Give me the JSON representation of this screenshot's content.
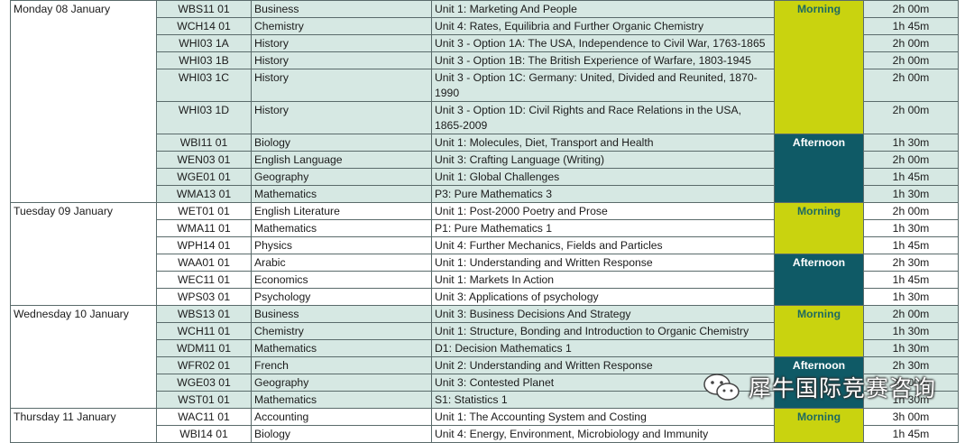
{
  "days": [
    {
      "date": "Monday 08 January",
      "rows": [
        {
          "code": "WBS11 01",
          "subject": "Business",
          "unit": "Unit 1: Marketing And People",
          "duration": "2h 00m"
        },
        {
          "code": "WCH14 01",
          "subject": "Chemistry",
          "unit": "Unit 4: Rates, Equilibria and Further Organic Chemistry",
          "duration": "1h 45m"
        },
        {
          "code": "WHI03 1A",
          "subject": "History",
          "unit": "Unit 3 - Option 1A: The USA, Independence to Civil War, 1763-1865",
          "duration": "2h 00m"
        },
        {
          "code": "WHI03 1B",
          "subject": "History",
          "unit": "Unit 3 - Option 1B: The British Experience of Warfare, 1803-1945",
          "duration": "2h 00m"
        },
        {
          "code": "WHI03 1C",
          "subject": "History",
          "unit": "Unit 3 - Option 1C: Germany: United, Divided and Reunited, 1870-1990",
          "duration": "2h 00m"
        },
        {
          "code": "WHI03 1D",
          "subject": "History",
          "unit": "Unit 3 - Option 1D: Civil Rights and Race Relations in the USA, 1865-2009",
          "duration": "2h 00m"
        },
        {
          "code": "WBI11 01",
          "subject": "Biology",
          "unit": "Unit 1: Molecules, Diet, Transport and Health",
          "duration": "1h 30m"
        },
        {
          "code": "WEN03 01",
          "subject": "English Language",
          "unit": "Unit 3: Crafting Language (Writing)",
          "duration": "2h 00m"
        },
        {
          "code": "WGE01 01",
          "subject": "Geography",
          "unit": "Unit 1: Global Challenges",
          "duration": "1h 45m"
        },
        {
          "code": "WMA13 01",
          "subject": "Mathematics",
          "unit": "P3: Pure Mathematics 3",
          "duration": "1h 30m"
        }
      ]
    },
    {
      "date": "Tuesday 09 January",
      "rows": [
        {
          "code": "WET01 01",
          "subject": "English Literature",
          "unit": "Unit 1: Post-2000 Poetry and Prose",
          "duration": "2h 00m"
        },
        {
          "code": "WMA11 01",
          "subject": "Mathematics",
          "unit": "P1: Pure Mathematics 1",
          "duration": "1h 30m"
        },
        {
          "code": "WPH14 01",
          "subject": "Physics",
          "unit": "Unit 4: Further Mechanics, Fields and Particles",
          "duration": "1h 45m"
        },
        {
          "code": "WAA01 01",
          "subject": "Arabic",
          "unit": "Unit 1: Understanding and Written Response",
          "duration": "2h 30m"
        },
        {
          "code": "WEC11 01",
          "subject": "Economics",
          "unit": "Unit 1: Markets In Action",
          "duration": "1h 45m"
        },
        {
          "code": "WPS03 01",
          "subject": "Psychology",
          "unit": "Unit 3: Applications of psychology",
          "duration": "1h 30m"
        }
      ]
    },
    {
      "date": "Wednesday 10 January",
      "rows": [
        {
          "code": "WBS13 01",
          "subject": "Business",
          "unit": "Unit 3: Business Decisions And Strategy",
          "duration": "2h 00m"
        },
        {
          "code": "WCH11 01",
          "subject": "Chemistry",
          "unit": "Unit 1: Structure, Bonding and Introduction to Organic Chemistry",
          "duration": "1h 30m"
        },
        {
          "code": "WDM11 01",
          "subject": "Mathematics",
          "unit": "D1: Decision Mathematics 1",
          "duration": "1h 30m"
        },
        {
          "code": "WFR02 01",
          "subject": "French",
          "unit": "Unit 2: Understanding and Written Response",
          "duration": "2h 30m"
        },
        {
          "code": "WGE03 01",
          "subject": "Geography",
          "unit": "Unit 3: Contested Planet",
          "duration": "2h 00m"
        },
        {
          "code": "WST01 01",
          "subject": "Mathematics",
          "unit": "S1: Statistics 1",
          "duration": "1h 30m"
        }
      ]
    },
    {
      "date": "Thursday 11 January",
      "rows": [
        {
          "code": "WAC11 01",
          "subject": "Accounting",
          "unit": "Unit 1: The Accounting System and Costing",
          "duration": "3h 00m"
        },
        {
          "code": "WBI14 01",
          "subject": "Biology",
          "unit": "Unit 4: Energy, Environment, Microbiology and Immunity",
          "duration": "1h 45m"
        }
      ]
    }
  ],
  "sessions": {
    "morning": "Morning",
    "afternoon": "Afternoon"
  },
  "colors": {
    "morning_bg": "#c9d30f",
    "afternoon_bg": "#0f5a66",
    "row_shade": "#d6e8e3"
  },
  "watermark": {
    "icon": "wechat-icon",
    "text": "犀牛国际竞赛咨询"
  }
}
